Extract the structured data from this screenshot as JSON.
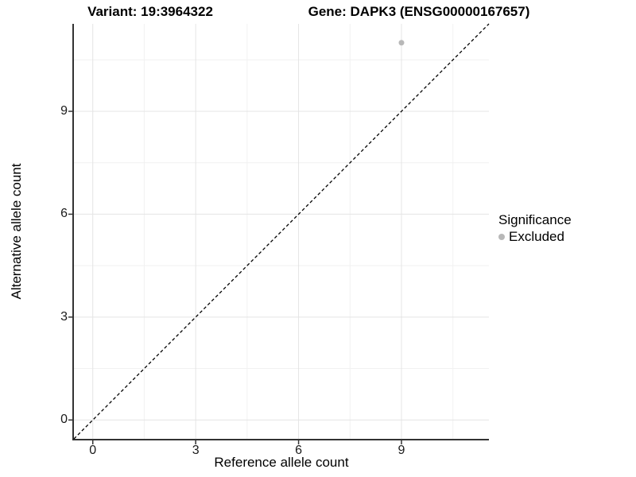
{
  "titles": {
    "variant": "Variant: 19:3964322",
    "gene": "Gene: DAPK3 (ENSG00000167657)"
  },
  "chart_data": {
    "type": "scatter",
    "xlabel": "Reference allele count",
    "ylabel": "Alternative allele count",
    "xlim": [
      -0.55,
      11.55
    ],
    "ylim": [
      -0.55,
      11.55
    ],
    "x_ticks": [
      0,
      3,
      6,
      9
    ],
    "y_ticks": [
      0,
      3,
      6,
      9
    ],
    "x_minor_ticks": [
      1.5,
      4.5,
      7.5,
      10.5
    ],
    "y_minor_ticks": [
      1.5,
      4.5,
      7.5,
      10.5
    ],
    "grid": true,
    "points": [
      {
        "x": 9,
        "y": 11,
        "series": "Excluded"
      }
    ],
    "identity_line": {
      "slope": 1,
      "intercept": 0,
      "style": "dashed"
    },
    "legend": {
      "title": "Significance",
      "position": "right",
      "entries": [
        {
          "label": "Excluded",
          "color": "#b8b8b8"
        }
      ]
    }
  },
  "colors": {
    "background": "#ffffff",
    "point": "#b8b8b8",
    "grid_major": "#e4e4e4",
    "grid_minor": "#f1f1f1",
    "axis_line": "#333333",
    "tick_mark": "#333333",
    "identity_line": "#000000",
    "text": "#000000"
  }
}
